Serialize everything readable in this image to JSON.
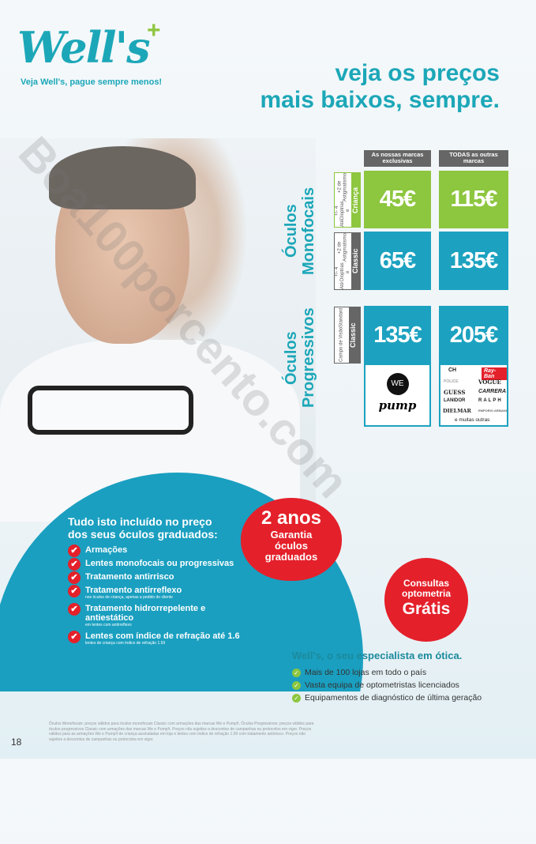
{
  "logo": {
    "text": "Well's",
    "tagline": "Veja Well's, pague sempre menos!"
  },
  "headline": [
    "veja os preços",
    "mais baixos, sempre."
  ],
  "table": {
    "headers": [
      "As nossas marcas exclusivas",
      "TODAS as outras marcas"
    ],
    "groups": [
      {
        "title": [
          "Óculos",
          "Monofocais"
        ],
        "rows": [
          {
            "type": "Criança",
            "detail": [
              "Até",
              "+/- 4 Dioptrias e",
              "+2 de Astigmatismo"
            ],
            "own": "45€",
            "other": "115€",
            "color": "#8dc63f"
          },
          {
            "type": "Classic",
            "detail": [
              "Até",
              "+/- 4 Dioptrias e",
              "+2 de Astigmatismo"
            ],
            "own": "65€",
            "other": "135€",
            "color": "#1ca2c0"
          }
        ]
      },
      {
        "title": [
          "Óculos",
          "Progressivos"
        ],
        "rows": [
          {
            "type": "Classic",
            "detail": [
              "Campo de Visão",
              "Standard"
            ],
            "own": "135€",
            "other": "205€",
            "color": "#1ca2c0"
          }
        ]
      }
    ],
    "own_brands": [
      "WE",
      "pump"
    ],
    "other_brands": [
      "CH",
      "Ray-Ban",
      "POLICE",
      "VOGUE",
      "GUESS",
      "CARRERA",
      "LANIDOR",
      "RALPH",
      "DIELMAR",
      "EMPORIO ARMANI"
    ],
    "more": "e muitas outras"
  },
  "included": {
    "title": "Tudo isto incluído no preço dos seus óculos graduados:",
    "items": [
      {
        "label": "Armações",
        "note": ""
      },
      {
        "label": "Lentes monofocais ou progressivas",
        "note": ""
      },
      {
        "label": "Tratamento antirrisco",
        "note": ""
      },
      {
        "label": "Tratamento antirreflexo",
        "note": "nos óculos de criança, apenas a pedido do cliente"
      },
      {
        "label": "Tratamento hidrorrepelente e antiestático",
        "note": "em lentes com antirreflexo"
      },
      {
        "label": "Lentes com índice de refração até 1.6",
        "note": "lentes de criança com índice de refração 1.59"
      }
    ]
  },
  "warranty": {
    "big": "2 anos",
    "lines": [
      "Garantia",
      "óculos",
      "graduados"
    ]
  },
  "consult": {
    "lines": [
      "Consultas",
      "optometria"
    ],
    "big": "Grátis"
  },
  "specialist": {
    "title": "Well's, o seu especialista em ótica.",
    "items": [
      "Mais de 100 lojas em todo o país",
      "Vasta equipa de optometristas licenciados",
      "Equipamentos de diagnóstico de última geração"
    ]
  },
  "footnote": "Óculos Monofocais: preços válidos para óculos monofocais Classic com armações das marcas We e Pump!t. Óculos Progressivos: preços válidos para óculos progressivos Classic com armações das marcas We e Pump!t. Preços não sujeitos a descontos de campanhas ou protocolos em vigor. Preços válidos para as armações We e Pump!t de criança assinaladas em loja e lentes com índice de refração 1.59 com tratamento antirrisco. Preços não sujeitos a descontos de campanhas ou protocolos em vigor.",
  "page_number": "18",
  "watermark": "Boa100porcento.com",
  "colors": {
    "teal": "#1ca2c0",
    "green": "#8dc63f",
    "red": "#e4202a",
    "gray": "#666666"
  }
}
